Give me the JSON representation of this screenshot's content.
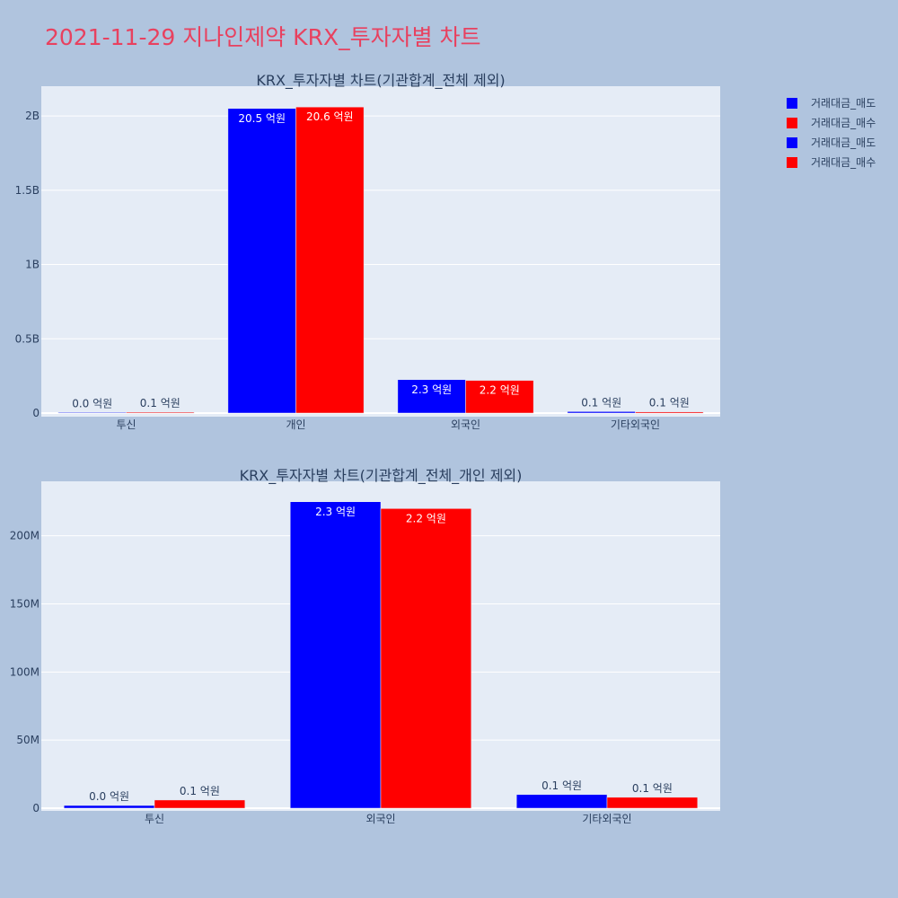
{
  "page_title": "2021-11-29 지나인제약 KRX_투자자별 차트",
  "colors": {
    "sell": "#0000ff",
    "buy": "#ff0000",
    "plot_bg": "#e5ecf6",
    "paper_bg": "#b0c4de",
    "title": "#e8415f",
    "text": "#2a3f5f"
  },
  "legend": {
    "placement": "top-right",
    "entries": [
      {
        "label": "거래대금_매도",
        "color": "#0000ff"
      },
      {
        "label": "거래대금_매수",
        "color": "#ff0000"
      },
      {
        "label": "거래대금_매도",
        "color": "#0000ff"
      },
      {
        "label": "거래대금_매수",
        "color": "#ff0000"
      }
    ]
  },
  "chart_data": [
    {
      "type": "bar",
      "title": "KRX_투자자별 차트(기관합계_전체 제외)",
      "categories": [
        "투신",
        "개인",
        "외국인",
        "기타외국인"
      ],
      "ylim": [
        0,
        2200000000
      ],
      "yticks": [
        {
          "value": 0,
          "label": "0"
        },
        {
          "value": 500000000,
          "label": "0.5B"
        },
        {
          "value": 1000000000,
          "label": "1B"
        },
        {
          "value": 1500000000,
          "label": "1.5B"
        },
        {
          "value": 2000000000,
          "label": "2B"
        }
      ],
      "grid": true,
      "series": [
        {
          "name": "거래대금_매도",
          "color": "#0000ff",
          "values": [
            2000000,
            2050000000,
            225000000,
            10000000
          ],
          "labels": [
            "0.0 억원",
            "20.5 억원",
            "2.3 억원",
            "0.1 억원"
          ]
        },
        {
          "name": "거래대금_매수",
          "color": "#ff0000",
          "values": [
            6000000,
            2060000000,
            220000000,
            8000000
          ],
          "labels": [
            "0.1 억원",
            "20.6 억원",
            "2.2 억원",
            "0.1 억원"
          ]
        }
      ]
    },
    {
      "type": "bar",
      "title": "KRX_투자자별 차트(기관합계_전체_개인 제외)",
      "categories": [
        "투신",
        "외국인",
        "기타외국인"
      ],
      "ylim": [
        0,
        240000000
      ],
      "yticks": [
        {
          "value": 0,
          "label": "0"
        },
        {
          "value": 50000000,
          "label": "50M"
        },
        {
          "value": 100000000,
          "label": "100M"
        },
        {
          "value": 150000000,
          "label": "150M"
        },
        {
          "value": 200000000,
          "label": "200M"
        }
      ],
      "grid": true,
      "series": [
        {
          "name": "거래대금_매도",
          "color": "#0000ff",
          "values": [
            2000000,
            225000000,
            10000000
          ],
          "labels": [
            "0.0 억원",
            "2.3 억원",
            "0.1 억원"
          ]
        },
        {
          "name": "거래대금_매수",
          "color": "#ff0000",
          "values": [
            6000000,
            220000000,
            8000000
          ],
          "labels": [
            "0.1 억원",
            "2.2 억원",
            "0.1 억원"
          ]
        }
      ]
    }
  ]
}
